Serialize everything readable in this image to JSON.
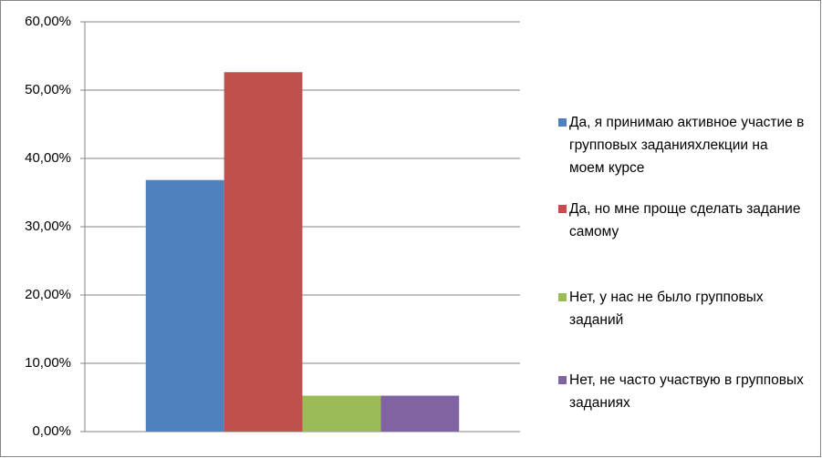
{
  "chart_data": {
    "type": "bar",
    "categories": [
      null
    ],
    "series": [
      {
        "name": "Да, я принимаю активное участие в групповых заданияхлекции на моем курсе",
        "color": "#4f81bd",
        "values": [
          36.84
        ]
      },
      {
        "name": "Да, но мне проще сделать задание самому",
        "color": "#c0504d",
        "values": [
          52.63
        ]
      },
      {
        "name": "Нет, у нас не было групповых заданий",
        "color": "#9bbb59",
        "values": [
          5.26
        ]
      },
      {
        "name": "Нет, не часто участвую в групповых заданиях",
        "color": "#8064a2",
        "values": [
          5.26
        ]
      }
    ],
    "ylim": [
      0,
      60
    ],
    "yticks": [
      {
        "value": 0,
        "label": "0,00%"
      },
      {
        "value": 10,
        "label": "10,00%"
      },
      {
        "value": 20,
        "label": "20,00%"
      },
      {
        "value": 30,
        "label": "30,00%"
      },
      {
        "value": 40,
        "label": "40,00%"
      },
      {
        "value": 50,
        "label": "50,00%"
      },
      {
        "value": 60,
        "label": "60,00%"
      }
    ],
    "grid": true,
    "legend": "right"
  }
}
